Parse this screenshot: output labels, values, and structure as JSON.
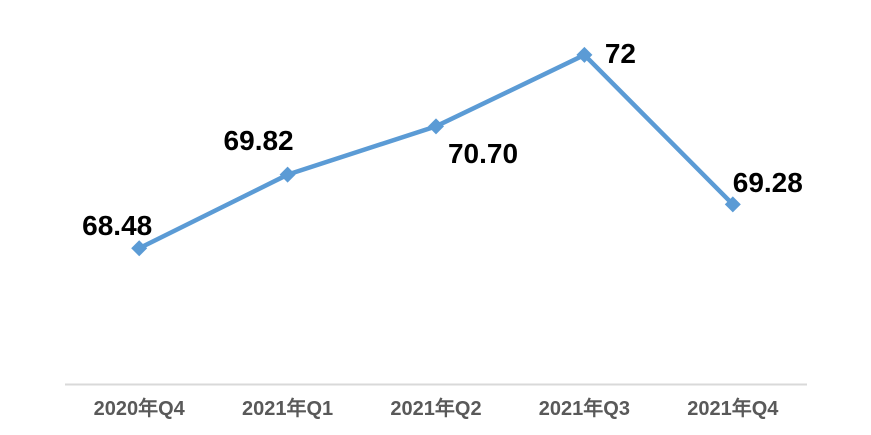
{
  "chart_data": {
    "type": "line",
    "categories": [
      "2020年Q4",
      "2021年Q1",
      "2021年Q2",
      "2021年Q3",
      "2021年Q4"
    ],
    "values": [
      68.48,
      69.82,
      70.7,
      72,
      69.28
    ],
    "data_labels": [
      "68.48",
      "69.82",
      "70.70",
      "72",
      "69.28"
    ],
    "title": "",
    "xlabel": "",
    "ylabel": "",
    "ylim": [
      66,
      73
    ],
    "grid": false,
    "legend": false,
    "marker_shape": "diamond",
    "colors": {
      "line": "#5B9BD5",
      "marker": "#5B9BD5",
      "data_label": "#000000",
      "axis_line": "#D9D9D9",
      "tick_label": "#595959",
      "background": "#FFFFFF"
    }
  }
}
